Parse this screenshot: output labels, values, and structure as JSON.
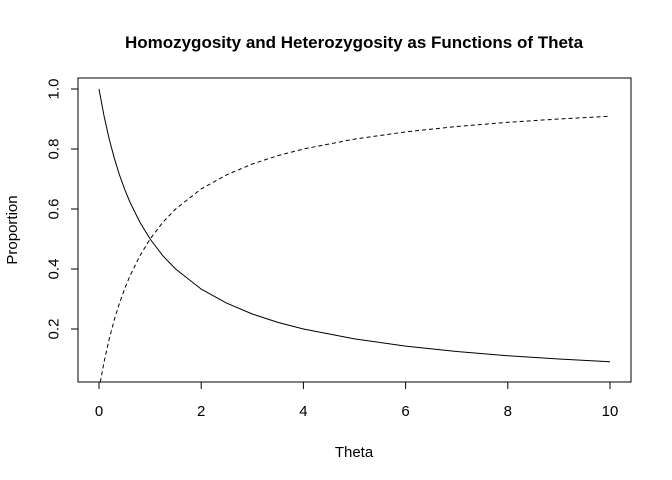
{
  "chart_data": {
    "type": "line",
    "title": "Homozygosity and Heterozygosity as Functions of Theta",
    "xlabel": "Theta",
    "ylabel": "Proportion",
    "xlim": [
      0,
      10
    ],
    "ylim": [
      0.06,
      1.0
    ],
    "xticks": [
      0,
      2,
      4,
      6,
      8,
      10
    ],
    "yticks": [
      0.2,
      0.4,
      0.6,
      0.8,
      1.0
    ],
    "xtick_labels": [
      "0",
      "2",
      "4",
      "6",
      "8",
      "10"
    ],
    "ytick_labels": [
      "0.2",
      "0.4",
      "0.6",
      "0.8",
      "1.0"
    ],
    "grid": false,
    "x": [
      0,
      0.1,
      0.2,
      0.3,
      0.4,
      0.5,
      0.6,
      0.8,
      1.0,
      1.25,
      1.5,
      2.0,
      2.5,
      3.0,
      3.5,
      4.0,
      5.0,
      6.0,
      7.0,
      8.0,
      9.0,
      10.0
    ],
    "series": [
      {
        "line_style": "solid",
        "color": "#000000",
        "values": [
          1.0,
          0.909,
          0.833,
          0.769,
          0.714,
          0.667,
          0.625,
          0.556,
          0.5,
          0.444,
          0.4,
          0.333,
          0.286,
          0.25,
          0.222,
          0.2,
          0.167,
          0.143,
          0.125,
          0.111,
          0.1,
          0.091
        ]
      },
      {
        "line_style": "dashed",
        "color": "#000000",
        "values": [
          0.0,
          0.091,
          0.167,
          0.231,
          0.286,
          0.333,
          0.375,
          0.444,
          0.5,
          0.556,
          0.6,
          0.667,
          0.714,
          0.75,
          0.778,
          0.8,
          0.833,
          0.857,
          0.875,
          0.889,
          0.9,
          0.909
        ]
      }
    ]
  }
}
